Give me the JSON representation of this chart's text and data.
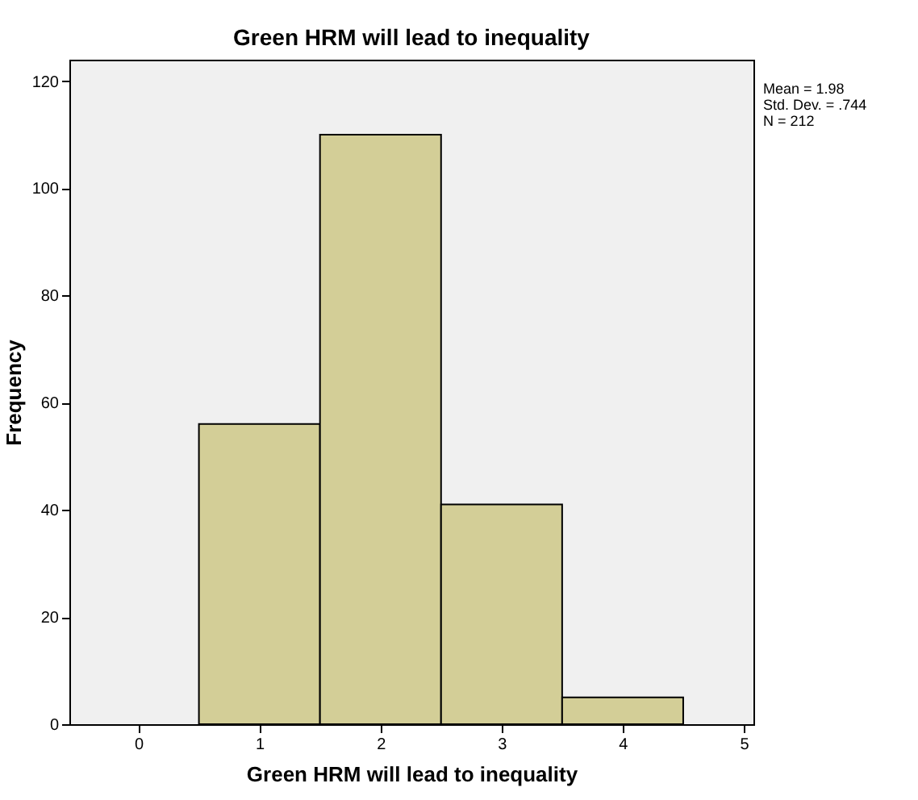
{
  "chart_data": {
    "type": "histogram",
    "title": "Green HRM will lead to inequality",
    "xlabel": "Green HRM will lead to inequality",
    "ylabel": "Frequency",
    "bins": [
      0.5,
      1.5,
      2.5,
      3.5,
      4.5
    ],
    "values": [
      56,
      110,
      41,
      5
    ],
    "color": "#d3ce97",
    "xlim": [
      -0.57,
      5.08
    ],
    "xticks": [
      0,
      1,
      2,
      3,
      4,
      5
    ],
    "ylim": [
      0,
      124
    ],
    "yticks": [
      0,
      20,
      40,
      60,
      80,
      100,
      120
    ],
    "grid": false,
    "annotations": [
      "Mean = 1.98",
      "Std. Dev. = .744",
      "N = 212"
    ]
  }
}
